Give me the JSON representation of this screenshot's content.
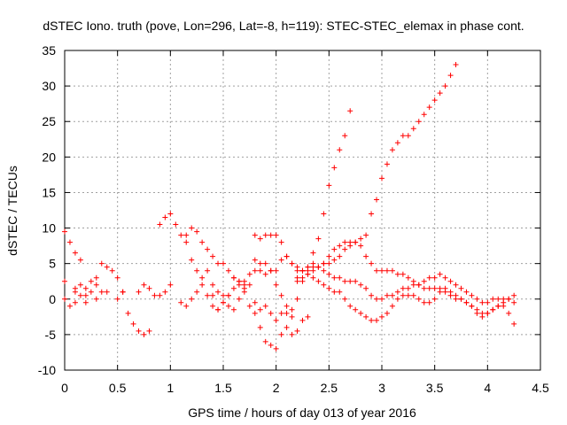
{
  "chart_data": {
    "type": "scatter",
    "title": "dSTEC Iono. truth (pove, Lon=296, Lat=-8, h=119): STEC-STEC_elemax in phase cont.",
    "xlabel": "GPS time / hours of day 013 of year 2016",
    "ylabel": "dSTEC  / TECUs",
    "xlim": [
      0,
      4.5
    ],
    "ylim": [
      -10,
      35
    ],
    "xticks": [
      0,
      0.5,
      1,
      1.5,
      2,
      2.5,
      3,
      3.5,
      4,
      4.5
    ],
    "xtick_labels": [
      "0",
      "0.5",
      "1",
      "1.5",
      "2",
      "2.5",
      "3",
      "3.5",
      "4",
      "4.5"
    ],
    "yticks": [
      -10,
      -5,
      0,
      5,
      10,
      15,
      20,
      25,
      30,
      35
    ],
    "ytick_labels": [
      "-10",
      "-5",
      "0",
      "5",
      "10",
      "15",
      "20",
      "25",
      "30",
      "35"
    ],
    "grid": true,
    "marker": "+",
    "color": "#ff0000",
    "series": [
      {
        "x": [
          0,
          0.05,
          0.1,
          0.15
        ],
        "y": [
          9.5,
          8,
          6.5,
          5.5
        ]
      },
      {
        "x": [
          0,
          0.1,
          0.2,
          0.3,
          0.4,
          0.5
        ],
        "y": [
          2.5,
          1.5,
          0.5,
          0,
          1,
          0
        ]
      },
      {
        "x": [
          0,
          0.05,
          0.1,
          0.15,
          0.2,
          0.25,
          0.3
        ],
        "y": [
          0,
          -1,
          -0.5,
          0.5,
          1.5,
          2.5,
          2
        ]
      },
      {
        "x": [
          0.1,
          0.15,
          0.2,
          0.25,
          0.3,
          0.35
        ],
        "y": [
          1,
          2,
          -0.5,
          1,
          3,
          1
        ]
      },
      {
        "x": [
          0.35,
          0.4,
          0.45,
          0.5,
          0.55
        ],
        "y": [
          5,
          4.5,
          4,
          3,
          1
        ]
      },
      {
        "x": [
          0.55,
          0.6,
          0.65,
          0.7,
          0.75,
          0.8
        ],
        "y": [
          1,
          -2,
          -3.5,
          -4.5,
          -5,
          -4.5
        ]
      },
      {
        "x": [
          0.7,
          0.75,
          0.8,
          0.85,
          0.9,
          0.95,
          1
        ],
        "y": [
          1,
          2,
          1.5,
          0.5,
          0.5,
          1,
          2
        ]
      },
      {
        "x": [
          0.9,
          0.95,
          1,
          1.05,
          1.1,
          1.15,
          1.2,
          1.25,
          1.3,
          1.35,
          1.4,
          1.45,
          1.5,
          1.55,
          1.6,
          1.65,
          1.7,
          1.75,
          1.8,
          1.85,
          1.9,
          1.95,
          2,
          2.05,
          2.1,
          2.15
        ],
        "y": [
          10.5,
          11.5,
          12,
          10.5,
          9,
          8,
          5.5,
          4,
          2,
          0.5,
          -1,
          -1.5,
          -0.5,
          0.5,
          1.5,
          2.5,
          2.5,
          3.5,
          4,
          5,
          5,
          4,
          2,
          0.5,
          -1,
          -1.5
        ]
      },
      {
        "x": [
          1.1,
          1.15,
          1.2,
          1.25,
          1.3,
          1.35,
          1.4,
          1.45,
          1.5,
          1.55,
          1.6,
          1.65,
          1.7,
          1.75,
          1.8,
          1.85,
          1.9,
          1.95,
          2,
          2.05,
          2.1,
          2.15,
          2.2,
          2.25,
          2.3
        ],
        "y": [
          -0.5,
          -1,
          0,
          1,
          3,
          4,
          2,
          1,
          0.5,
          -1,
          -1.5,
          0,
          1.5,
          2,
          -0.5,
          -4,
          -6,
          -6.5,
          -7,
          -5,
          -4,
          -5,
          -4.5,
          -3,
          -2.5
        ]
      },
      {
        "x": [
          1.15,
          1.2,
          1.25,
          1.3,
          1.35,
          1.4,
          1.45,
          1.5,
          1.55,
          1.6,
          1.65,
          1.7
        ],
        "y": [
          9,
          10,
          9.5,
          8,
          7,
          6,
          5,
          5,
          4,
          3,
          2.5,
          2
        ]
      },
      {
        "x": [
          1.4,
          1.45,
          1.5,
          1.55,
          1.6,
          1.65,
          1.7,
          1.75,
          1.8,
          1.85,
          1.9,
          1.95,
          2,
          2.05,
          2.1,
          2.15,
          2.2,
          2.25,
          2.3,
          2.35,
          2.4,
          2.45,
          2.5,
          2.55,
          2.6,
          2.65,
          2.7
        ],
        "y": [
          0.5,
          -1.5,
          -0.5,
          0.5,
          3,
          2,
          1,
          -1,
          -2,
          -1.5,
          -1,
          -2,
          -3,
          -2,
          -2,
          -2.5,
          0,
          2.5,
          4.5,
          6.5,
          8.5,
          12,
          16,
          18.5,
          21,
          23,
          26.5
        ]
      },
      {
        "x": [
          1.8,
          1.85,
          1.9,
          1.95,
          2,
          2.05,
          2.1,
          2.15,
          2.2,
          2.25,
          2.3,
          2.35,
          2.4,
          2.45,
          2.5,
          2.55,
          2.6,
          2.65,
          2.7,
          2.75,
          2.8,
          2.85,
          2.9,
          2.95,
          3,
          3.05,
          3.1,
          3.15,
          3.2,
          3.25,
          3.3,
          3.35,
          3.4,
          3.45,
          3.5,
          3.55,
          3.6,
          3.65,
          3.7
        ],
        "y": [
          9,
          8.5,
          9,
          9,
          9,
          8,
          6,
          5,
          4,
          4,
          3.5,
          4,
          4.5,
          5,
          5,
          5.5,
          6,
          7,
          7.5,
          8,
          8.5,
          9,
          12,
          14,
          17,
          19,
          21,
          22,
          23,
          23,
          24,
          25,
          26,
          27,
          28,
          29,
          30,
          31.5,
          33
        ]
      },
      {
        "x": [
          1.8,
          1.85,
          1.9,
          1.95,
          2,
          2.05,
          2.1,
          2.15,
          2.2,
          2.25,
          2.3,
          2.35,
          2.4,
          2.45,
          2.5,
          2.55,
          2.6,
          2.65,
          2.7,
          2.75,
          2.8,
          2.85,
          2.9,
          2.95,
          3,
          3.05,
          3.1,
          3.15,
          3.2,
          3.25,
          3.3,
          3.35,
          3.4,
          3.45,
          3.5,
          3.55,
          3.6,
          3.65,
          3.7,
          3.75,
          3.8,
          3.85,
          3.9,
          3.95,
          4,
          4.05,
          4.1,
          4.15,
          4.2,
          4.25
        ],
        "y": [
          5.5,
          4,
          3.5,
          4,
          4,
          5.5,
          6,
          5,
          4.5,
          4,
          3.5,
          3,
          2.5,
          2,
          1.5,
          1,
          1,
          0,
          -1,
          -1.5,
          -2,
          -2.5,
          -3,
          -3,
          -2.5,
          -2,
          -1,
          0,
          0.5,
          0.5,
          0.5,
          0,
          -0.5,
          -0.5,
          0,
          1,
          1.5,
          1,
          0.5,
          0,
          -0.5,
          -1,
          -1.5,
          -2,
          -2,
          -1.5,
          -1,
          -0.5,
          0,
          0.5
        ]
      },
      {
        "x": [
          2.2,
          2.25,
          2.3,
          2.35,
          2.4,
          2.45,
          2.5,
          2.55,
          2.6,
          2.65,
          2.7,
          2.75,
          2.8,
          2.85,
          2.9,
          2.95,
          3,
          3.05,
          3.1,
          3.15,
          3.2,
          3.25,
          3.3,
          3.35,
          3.4,
          3.45,
          3.5,
          3.55,
          3.6,
          3.65,
          3.7,
          3.75,
          3.8,
          3.85,
          3.9,
          3.95,
          4,
          4.05,
          4.1,
          4.15,
          4.2,
          4.25
        ],
        "y": [
          2.5,
          3,
          4,
          4.5,
          4.5,
          5,
          6,
          7,
          7.5,
          8,
          8,
          8,
          7.5,
          6,
          5,
          4,
          4,
          4,
          4,
          3.5,
          3.5,
          3,
          2.5,
          2,
          1.5,
          1.5,
          1.5,
          1.5,
          1,
          0.5,
          0,
          0,
          -0.5,
          -1,
          -2,
          -2.5,
          -2,
          -1.5,
          -1,
          -1,
          -2,
          -3.5
        ]
      },
      {
        "x": [
          2.2,
          2.25,
          2.3,
          2.35,
          2.4,
          2.45,
          2.5,
          2.55,
          2.6,
          2.65,
          2.7,
          2.75,
          2.8,
          2.85,
          2.9,
          2.95,
          3,
          3.05,
          3.1,
          3.15,
          3.2,
          3.25,
          3.3,
          3.35,
          3.4,
          3.45,
          3.5,
          3.55,
          3.6,
          3.65,
          3.7,
          3.75,
          3.8,
          3.85,
          3.9,
          3.95,
          4,
          4.05,
          4.1,
          4.15,
          4.2,
          4.25
        ],
        "y": [
          3,
          4,
          4.5,
          5,
          4.5,
          4,
          3.5,
          3,
          3,
          2.5,
          2.5,
          2.5,
          2,
          1.5,
          0.5,
          0,
          0,
          0.5,
          0.5,
          1,
          1.5,
          1.5,
          2,
          2,
          2.5,
          3,
          3,
          3.5,
          3,
          2.5,
          2,
          1.5,
          1,
          0.5,
          0,
          -0.5,
          -0.5,
          0,
          0,
          0,
          0,
          -0.5
        ]
      }
    ]
  }
}
